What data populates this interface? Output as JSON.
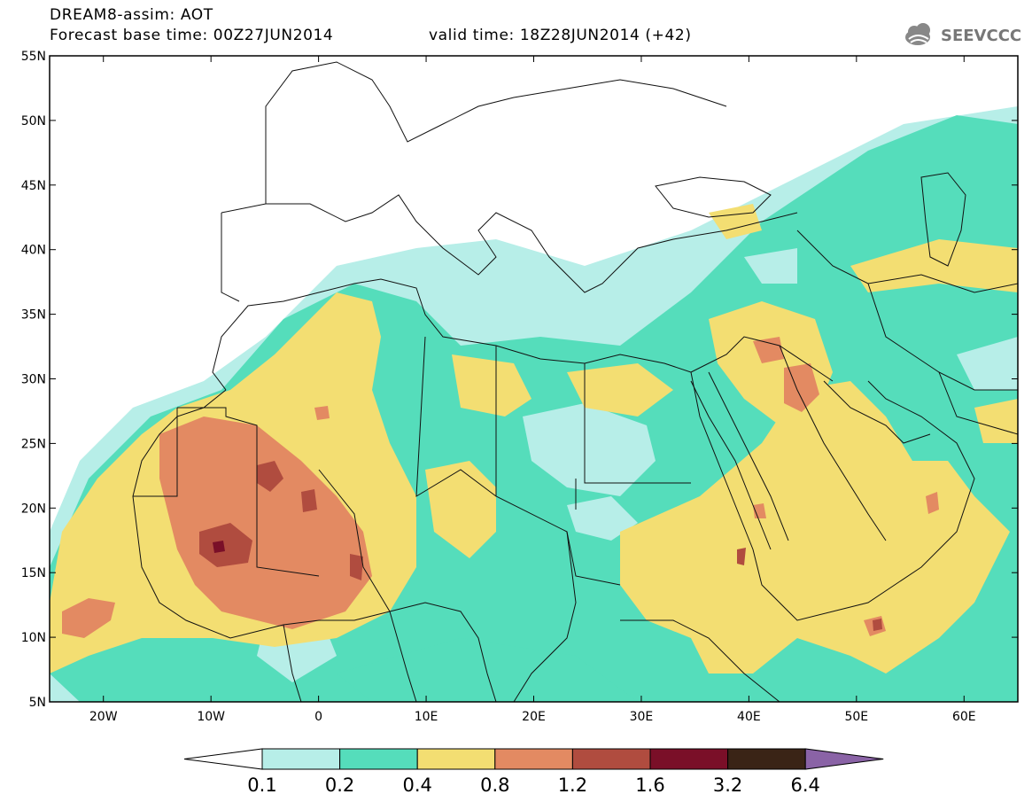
{
  "header": {
    "line1": "DREAM8-assim: AOT",
    "line2_base": "Forecast base time: 00Z27JUN2014",
    "line2_valid": "valid time: 18Z28JUN2014 (+42)"
  },
  "logo": {
    "text": "SEEVCCC",
    "icon": "cloud-icon"
  },
  "map": {
    "lon_range": [
      -25,
      65
    ],
    "lat_range": [
      5,
      55
    ],
    "lat_ticks": [
      "5N",
      "10N",
      "15N",
      "20N",
      "25N",
      "30N",
      "35N",
      "40N",
      "45N",
      "50N",
      "55N"
    ],
    "lon_ticks": [
      "20W",
      "10W",
      "0",
      "10E",
      "20E",
      "30E",
      "40E",
      "50E",
      "60E"
    ],
    "colors": {
      "c01_02": "#b7eee8",
      "c02_04": "#55ddbb",
      "c04_08": "#f3de72",
      "c08_12": "#e38a62",
      "c12_16": "#b04c3f",
      "c16_32": "#7a0f28",
      "c32_64": "#3a2416",
      "c64p": "#8a63a6",
      "border": "#111111"
    }
  },
  "colorbar": {
    "labels": [
      "0.1",
      "0.2",
      "0.4",
      "0.8",
      "1.2",
      "1.6",
      "3.2",
      "6.4"
    ],
    "colors": [
      "#ffffff",
      "#b7eee8",
      "#55ddbb",
      "#f3de72",
      "#e38a62",
      "#b04c3f",
      "#7a0f28",
      "#3a2416",
      "#8a63a6"
    ]
  }
}
